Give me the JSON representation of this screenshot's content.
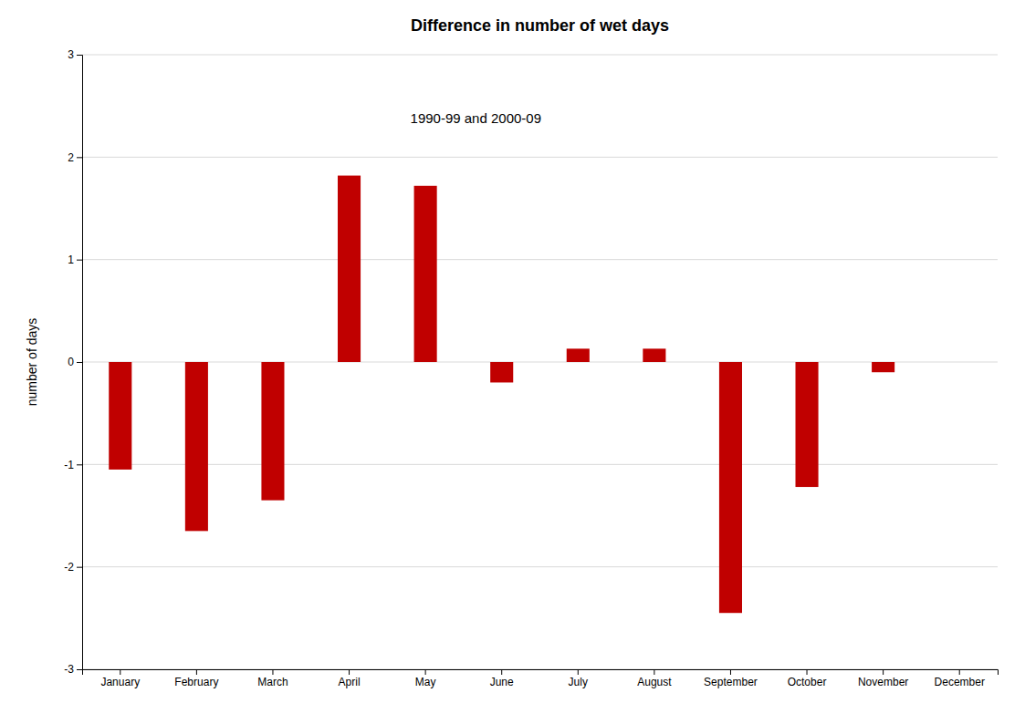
{
  "chart_data": {
    "type": "bar",
    "title": "Difference in number of wet days",
    "subtitle": "1990-99 and 2000-09",
    "ylabel": "number of days",
    "categories": [
      "January",
      "February",
      "March",
      "April",
      "May",
      "June",
      "July",
      "August",
      "September",
      "October",
      "November",
      "December"
    ],
    "values": [
      -1.05,
      -1.65,
      -1.35,
      1.82,
      1.72,
      -0.2,
      0.13,
      0.13,
      -2.45,
      -1.22,
      -0.1,
      0.0
    ],
    "color": "#c00000",
    "ylim": [
      -3,
      3
    ],
    "yticks": [
      -3,
      -2,
      -1,
      0,
      1,
      2,
      3
    ],
    "grid": true
  }
}
